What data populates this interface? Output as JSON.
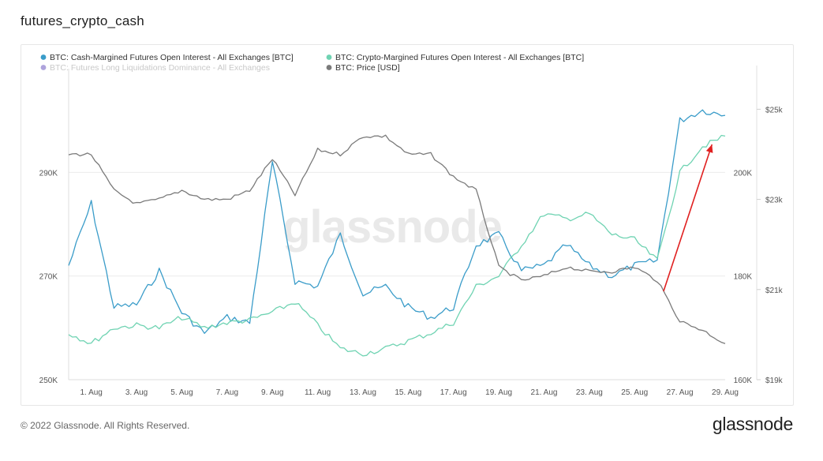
{
  "title": "futures_crypto_cash",
  "footer": {
    "copyright": "© 2022 Glassnode. All Rights Reserved.",
    "logo": "glassnode"
  },
  "watermark": "glassnode",
  "chart_data": {
    "type": "line",
    "x": [
      "31 Jul",
      "1 Aug",
      "2 Aug",
      "3 Aug",
      "4 Aug",
      "5 Aug",
      "6 Aug",
      "7 Aug",
      "8 Aug",
      "9 Aug",
      "10 Aug",
      "11 Aug",
      "12 Aug",
      "13 Aug",
      "14 Aug",
      "15 Aug",
      "16 Aug",
      "17 Aug",
      "18 Aug",
      "19 Aug",
      "20 Aug",
      "21 Aug",
      "22 Aug",
      "23 Aug",
      "24 Aug",
      "25 Aug",
      "26 Aug",
      "27 Aug",
      "28 Aug",
      "29 Aug"
    ],
    "x_tick_labels": [
      "1. Aug",
      "3. Aug",
      "5. Aug",
      "7. Aug",
      "9. Aug",
      "11. Aug",
      "13. Aug",
      "15. Aug",
      "17. Aug",
      "19. Aug",
      "21. Aug",
      "23. Aug",
      "25. Aug",
      "27. Aug",
      "29. Aug"
    ],
    "y_left": {
      "range": [
        250000,
        310000
      ],
      "ticks": [
        "250K",
        "270K",
        "290K"
      ],
      "tick_values": [
        250000,
        270000,
        290000
      ]
    },
    "y_right_inner": {
      "range": [
        160000,
        220000
      ],
      "ticks": [
        "160K",
        "180K",
        "200K"
      ],
      "tick_values": [
        160000,
        180000,
        200000
      ]
    },
    "y_right_outer": {
      "range": [
        19000,
        25900
      ],
      "ticks": [
        "$19k",
        "$21k",
        "$23k",
        "$25k"
      ],
      "tick_values": [
        19000,
        21000,
        23000,
        25000
      ]
    },
    "grid": true,
    "legend_position": "top-left",
    "legend": [
      {
        "label": "BTC: Cash-Margined Futures Open Interest - All Exchanges [BTC]",
        "color": "#3a9cc9"
      },
      {
        "label": "BTC: Crypto-Margined Futures Open Interest - All Exchanges [BTC]",
        "color": "#6fd3b2"
      },
      {
        "label": "BTC: Futures Long Liquidations Dominance - All Exchanges",
        "color": "#6b58c0",
        "faded": true
      },
      {
        "label": "BTC: Price [USD]",
        "color": "#7a7a7a"
      }
    ],
    "series": [
      {
        "name": "BTC: Cash-Margined Futures Open Interest - All Exchanges [BTC]",
        "axis": "left",
        "color": "#3a9cc9",
        "values": [
          272000,
          284000,
          264000,
          264500,
          271000,
          263000,
          259000,
          262000,
          261000,
          292000,
          269000,
          268000,
          278000,
          266500,
          268000,
          264000,
          262000,
          264000,
          276000,
          278000,
          271000,
          272000,
          276000,
          272000,
          270000,
          272000,
          273000,
          300000,
          302000,
          301000
        ]
      },
      {
        "name": "BTC: Crypto-Margined Futures Open Interest - All Exchanges [BTC]",
        "axis": "right_inner",
        "color": "#6fd3b2",
        "values": [
          169000,
          167000,
          170000,
          170500,
          170000,
          172000,
          170000,
          171000,
          171500,
          173000,
          175000,
          170500,
          166000,
          165000,
          166000,
          167500,
          169000,
          171000,
          178000,
          180000,
          186000,
          192000,
          191000,
          192000,
          188000,
          187000,
          183000,
          200000,
          205000,
          207000
        ]
      },
      {
        "name": "BTC: Price [USD]",
        "axis": "right_outer",
        "color": "#7a7a7a",
        "values": [
          24000,
          24000,
          23200,
          22900,
          23000,
          23200,
          23000,
          23000,
          23200,
          23900,
          23100,
          24100,
          24000,
          24400,
          24400,
          24000,
          24000,
          23500,
          23200,
          21500,
          21200,
          21300,
          21500,
          21400,
          21400,
          21500,
          21200,
          20300,
          20100,
          19800
        ]
      }
    ],
    "annotations": [
      {
        "type": "arrow",
        "color": "#e02020",
        "from_x": "26 Aug",
        "to_x": "28 Aug"
      }
    ]
  }
}
